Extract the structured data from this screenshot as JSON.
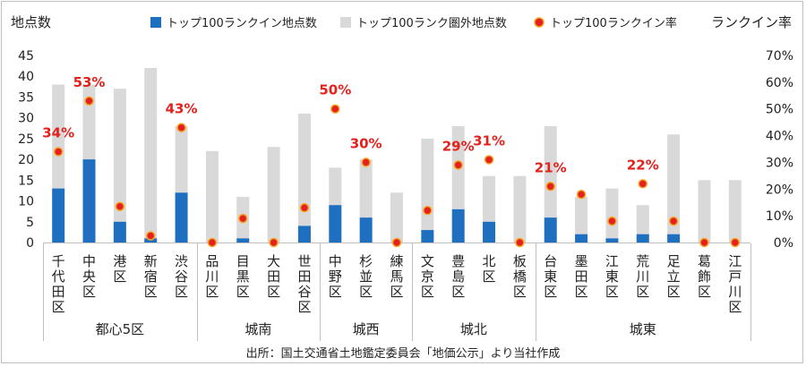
{
  "chart_data": {
    "type": "bar",
    "y_left_label": "地点数",
    "y_right_label": "ランクイン率",
    "y_left_range": [
      0,
      45
    ],
    "y_left_ticks": [
      "0",
      "5",
      "10",
      "15",
      "20",
      "25",
      "30",
      "35",
      "40",
      "45"
    ],
    "y_right_range": [
      0,
      0.7
    ],
    "y_right_ticks": [
      "0%",
      "10%",
      "20%",
      "30%",
      "40%",
      "50%",
      "60%",
      "70%"
    ],
    "legend": [
      {
        "label": "トップ100ランクイン地点数",
        "color": "#1f6fc0",
        "kind": "bar"
      },
      {
        "label": "トップ100ランク圏外地点数",
        "color": "#d9d9d9",
        "kind": "bar"
      },
      {
        "label": "トップ100ランクイン率",
        "color": "#e4211c",
        "kind": "dot"
      }
    ],
    "categories": [
      "千代田区",
      "中央区",
      "港区",
      "新宿区",
      "渋谷区",
      "品川区",
      "目黒区",
      "大田区",
      "世田谷区",
      "中野区",
      "杉並区",
      "練馬区",
      "文京区",
      "豊島区",
      "北区",
      "板橋区",
      "台東区",
      "墨田区",
      "江東区",
      "荒川区",
      "足立区",
      "葛飾区",
      "江戸川区"
    ],
    "series": [
      {
        "name": "トップ100ランクイン地点数",
        "values": [
          13,
          20,
          5,
          1,
          12,
          0,
          1,
          0,
          4,
          9,
          6,
          0,
          3,
          8,
          5,
          0,
          6,
          2,
          1,
          2,
          2,
          0,
          0
        ]
      },
      {
        "name": "トップ100ランク圏外地点数",
        "values": [
          25,
          18,
          32,
          41,
          16,
          22,
          10,
          23,
          27,
          9,
          14,
          12,
          22,
          20,
          11,
          16,
          22,
          9,
          12,
          7,
          24,
          15,
          15
        ]
      },
      {
        "name": "トップ100ランクイン率",
        "values": [
          0.34,
          0.53,
          0.135,
          0.025,
          0.43,
          0,
          0.09,
          0,
          0.13,
          0.5,
          0.3,
          0,
          0.12,
          0.29,
          0.31,
          0,
          0.21,
          0.18,
          0.08,
          0.22,
          0.08,
          0,
          0
        ]
      }
    ],
    "rate_labels": [
      {
        "index": 0,
        "text": "34%"
      },
      {
        "index": 1,
        "text": "53%"
      },
      {
        "index": 4,
        "text": "43%"
      },
      {
        "index": 9,
        "text": "50%"
      },
      {
        "index": 10,
        "text": "30%"
      },
      {
        "index": 13,
        "text": "29%"
      },
      {
        "index": 14,
        "text": "31%"
      },
      {
        "index": 16,
        "text": "21%"
      },
      {
        "index": 19,
        "text": "22%"
      }
    ],
    "groups": [
      {
        "name": "都心5区",
        "start": 0,
        "end": 4
      },
      {
        "name": "城南",
        "start": 5,
        "end": 8
      },
      {
        "name": "城西",
        "start": 9,
        "end": 11
      },
      {
        "name": "城北",
        "start": 12,
        "end": 15
      },
      {
        "name": "城東",
        "start": 16,
        "end": 22
      }
    ],
    "source": "出所：国土交通省土地鑑定委員会「地価公示」より当社作成"
  }
}
